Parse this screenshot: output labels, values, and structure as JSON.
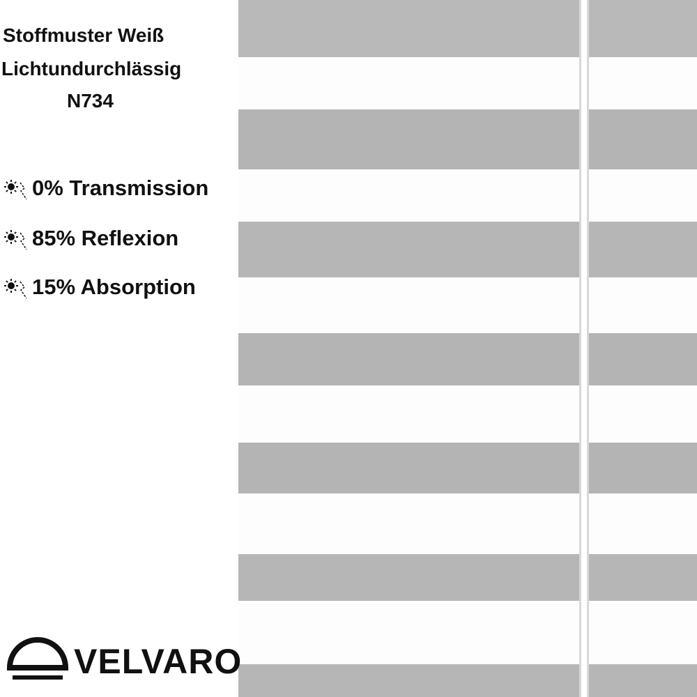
{
  "header": {
    "lines": [
      "Stoffmuster Weiß",
      "Lichtundurchlässig",
      "N734"
    ]
  },
  "properties": [
    "0% Transmission",
    "85% Reflexion",
    "15% Absorption"
  ],
  "brand": "VELVARO"
}
